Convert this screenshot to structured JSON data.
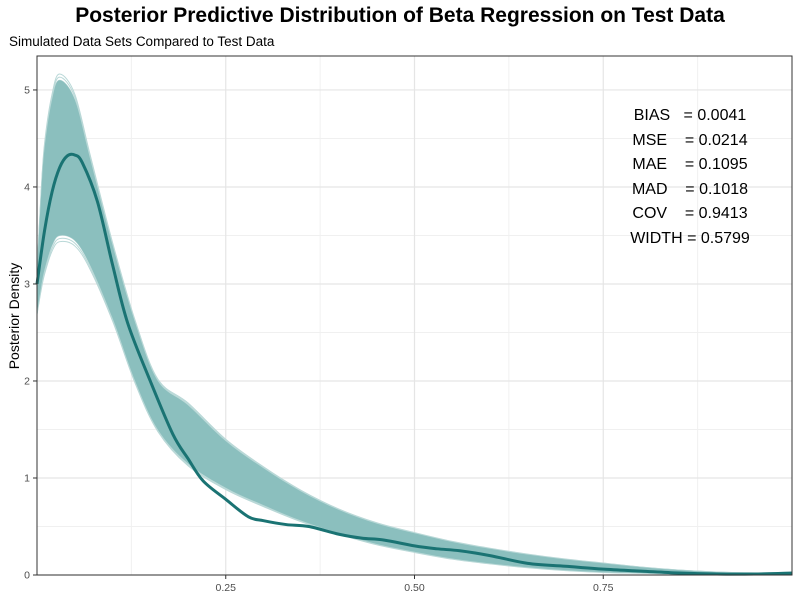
{
  "chart_data": {
    "type": "area",
    "title": "Posterior Predictive Distribution of Beta Regression on Test Data",
    "subtitle": "Simulated Data Sets Compared to Test Data",
    "xlabel": "",
    "ylabel": "Posterior Density",
    "xlim": [
      0,
      1
    ],
    "ylim": [
      0,
      5.35
    ],
    "x_ticks": [
      {
        "value": 0.25,
        "label": "0.25"
      },
      {
        "value": 0.5,
        "label": "0.50"
      },
      {
        "value": 0.75,
        "label": "0.75"
      }
    ],
    "y_ticks": [
      {
        "value": 0,
        "label": "0"
      },
      {
        "value": 1,
        "label": "1"
      },
      {
        "value": 2,
        "label": "2"
      },
      {
        "value": 3,
        "label": "3"
      },
      {
        "value": 4,
        "label": "4"
      },
      {
        "value": 5,
        "label": "5"
      }
    ],
    "grid": true,
    "band_color": "#8bbfbe",
    "band_edge_color": "#b9d8d7",
    "line_color": "#1a7373",
    "series": [
      {
        "role": "simulated-band-upper",
        "x": [
          0,
          0.005,
          0.01,
          0.02,
          0.03,
          0.05,
          0.07,
          0.1,
          0.13,
          0.16,
          0.2,
          0.25,
          0.3,
          0.35,
          0.4,
          0.45,
          0.5,
          0.55,
          0.6,
          0.65,
          0.7,
          0.75,
          0.8,
          0.85,
          0.9,
          0.95,
          1.0
        ],
        "y": [
          3.1,
          3.85,
          4.4,
          4.9,
          5.1,
          4.9,
          4.3,
          3.4,
          2.6,
          2.0,
          1.75,
          1.38,
          1.1,
          0.86,
          0.67,
          0.53,
          0.43,
          0.34,
          0.27,
          0.21,
          0.16,
          0.12,
          0.08,
          0.05,
          0.03,
          0.02,
          0.02
        ]
      },
      {
        "role": "simulated-band-lower",
        "x": [
          0,
          0.005,
          0.01,
          0.02,
          0.03,
          0.05,
          0.07,
          0.1,
          0.13,
          0.16,
          0.2,
          0.25,
          0.3,
          0.35,
          0.4,
          0.45,
          0.5,
          0.55,
          0.6,
          0.65,
          0.7,
          0.75,
          0.8,
          0.85,
          0.9,
          0.95,
          1.0
        ],
        "y": [
          2.7,
          2.95,
          3.15,
          3.4,
          3.5,
          3.45,
          3.2,
          2.65,
          2.0,
          1.5,
          1.15,
          0.9,
          0.72,
          0.56,
          0.43,
          0.32,
          0.24,
          0.17,
          0.12,
          0.08,
          0.05,
          0.03,
          0.02,
          0.01,
          0.0,
          0.0,
          0.0
        ]
      },
      {
        "role": "test-data-density",
        "x": [
          0,
          0.01,
          0.02,
          0.03,
          0.04,
          0.05,
          0.06,
          0.08,
          0.1,
          0.12,
          0.15,
          0.18,
          0.2,
          0.22,
          0.25,
          0.28,
          0.3,
          0.33,
          0.36,
          0.4,
          0.43,
          0.46,
          0.5,
          0.53,
          0.56,
          0.6,
          0.65,
          0.7,
          0.75,
          0.8,
          0.85,
          0.9,
          0.95,
          1.0
        ],
        "y": [
          3.0,
          3.55,
          3.95,
          4.2,
          4.32,
          4.33,
          4.25,
          3.85,
          3.2,
          2.6,
          2.0,
          1.45,
          1.2,
          0.97,
          0.78,
          0.6,
          0.56,
          0.52,
          0.5,
          0.42,
          0.38,
          0.36,
          0.3,
          0.27,
          0.25,
          0.2,
          0.12,
          0.09,
          0.06,
          0.04,
          0.02,
          0.01,
          0.01,
          0.02
        ]
      }
    ]
  },
  "stats": [
    {
      "label": "BIAS",
      "value": "= 0.0041"
    },
    {
      "label": "MSE",
      "value": "= 0.0214"
    },
    {
      "label": "MAE",
      "value": "= 0.1095"
    },
    {
      "label": "MAD",
      "value": "= 0.1018"
    },
    {
      "label": "COV",
      "value": "= 0.9413"
    },
    {
      "label": "WIDTH",
      "value": "= 0.5799"
    }
  ]
}
